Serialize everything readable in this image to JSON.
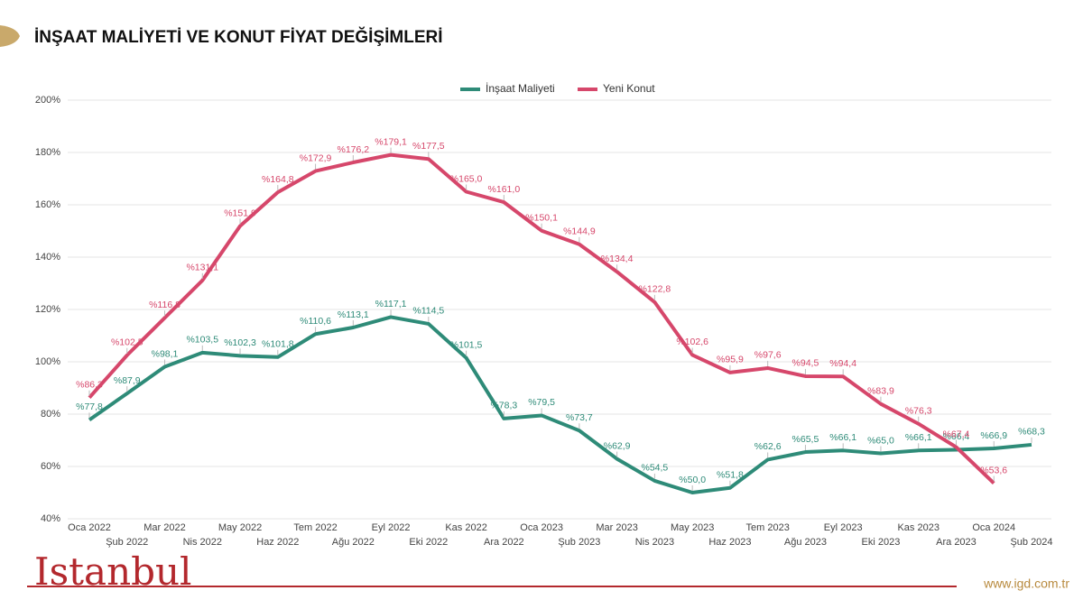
{
  "chart_data": {
    "type": "line",
    "title": "İNŞAAT MALİYETİ VE KONUT FİYAT DEĞİŞİMLERİ",
    "categories": [
      "Oca 2022",
      "Şub 2022",
      "Mar 2022",
      "Nis 2022",
      "May 2022",
      "Haz 2022",
      "Tem 2022",
      "Ağu 2022",
      "Eyl 2022",
      "Eki 2022",
      "Kas 2022",
      "Ara 2022",
      "Oca 2023",
      "Şub 2023",
      "Mar 2023",
      "Nis 2023",
      "May 2023",
      "Haz 2023",
      "Tem 2023",
      "Ağu 2023",
      "Eyl 2023",
      "Eki 2023",
      "Kas 2023",
      "Ara 2023",
      "Oca 2024",
      "Şub 2024"
    ],
    "series": [
      {
        "name": "İnşaat Maliyeti",
        "color": "#2e8b78",
        "values": [
          77.8,
          87.9,
          98.1,
          103.5,
          102.3,
          101.8,
          110.6,
          113.1,
          117.1,
          114.5,
          101.5,
          78.3,
          79.5,
          73.7,
          62.9,
          54.5,
          50.0,
          51.8,
          62.6,
          65.5,
          66.1,
          65.0,
          66.1,
          66.4,
          66.9,
          68.3
        ],
        "value_labels": [
          "%77,8",
          "%87,9",
          "%98,1",
          "%103,5",
          "%102,3",
          "%101,8",
          "%110,6",
          "%113,1",
          "%117,1",
          "%114,5",
          "%101,5",
          "%78,3",
          "%79,5",
          "%73,7",
          "%62,9",
          "%54,5",
          "%50,0",
          "%51,8",
          "%62,6",
          "%65,5",
          "%66,1",
          "%65,0",
          "%66,1",
          "%66,4",
          "%66,9",
          "%68,3"
        ]
      },
      {
        "name": "Yeni Konut",
        "color": "#d6476b",
        "values": [
          86.3,
          102.5,
          116.8,
          131.1,
          151.9,
          164.8,
          172.9,
          176.2,
          179.1,
          177.5,
          165.0,
          161.0,
          150.1,
          144.9,
          134.4,
          122.8,
          102.6,
          95.9,
          97.6,
          94.5,
          94.4,
          83.9,
          76.3,
          67.4,
          53.6,
          null
        ],
        "value_labels": [
          "%86,3",
          "%102,5",
          "%116,8",
          "%131,1",
          "%151,9",
          "%164,8",
          "%172,9",
          "%176,2",
          "%179,1",
          "%177,5",
          "%165,0",
          "%161,0",
          "%150,1",
          "%144,9",
          "%134,4",
          "%122,8",
          "%102,6",
          "%95,9",
          "%97,6",
          "%94,5",
          "%94,4",
          "%83,9",
          "%76,3",
          "%67,4",
          "%53,6",
          null
        ]
      }
    ],
    "ylim": [
      40,
      200
    ],
    "yticks": [
      {
        "value": 40,
        "label": "40%"
      },
      {
        "value": 60,
        "label": "60%"
      },
      {
        "value": 80,
        "label": "80%"
      },
      {
        "value": 100,
        "label": "100%"
      },
      {
        "value": 120,
        "label": "120%"
      },
      {
        "value": 140,
        "label": "140%"
      },
      {
        "value": 160,
        "label": "160%"
      },
      {
        "value": 180,
        "label": "180%"
      },
      {
        "value": 200,
        "label": "200%"
      }
    ],
    "grid": true,
    "legend": "top"
  },
  "footer": {
    "logo": "Istanbul",
    "website": "www.igd.com.tr"
  }
}
